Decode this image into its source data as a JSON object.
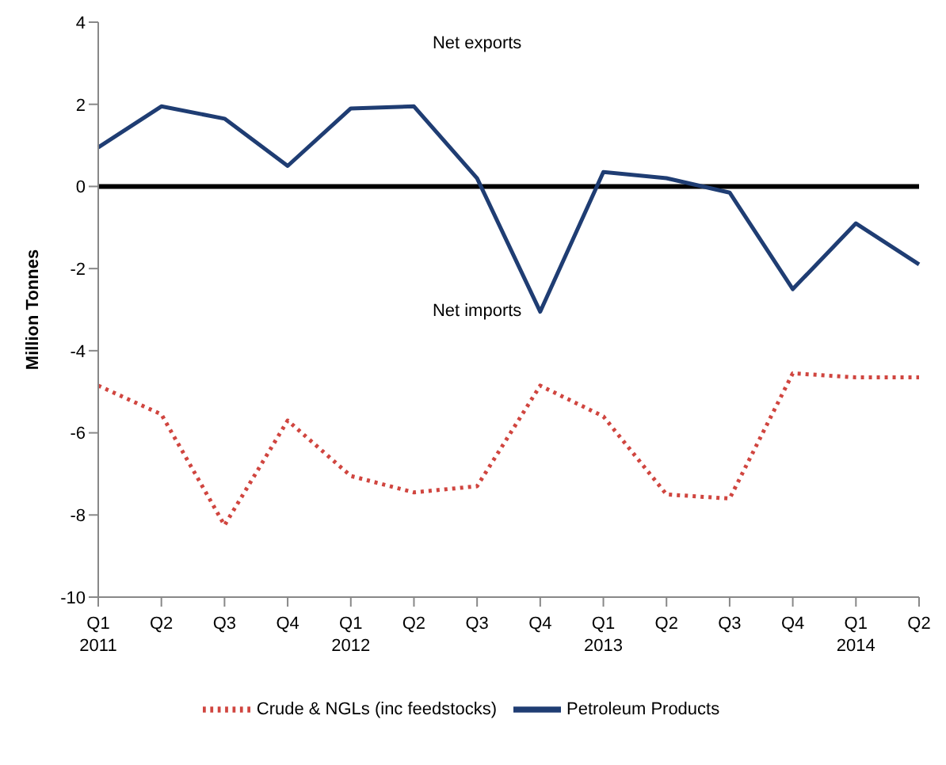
{
  "chart_data": {
    "type": "line",
    "ylabel": "Million Tonnes",
    "categories": [
      "Q1 2011",
      "Q2",
      "Q3",
      "Q4",
      "Q1 2012",
      "Q2",
      "Q3",
      "Q4",
      "Q1 2013",
      "Q2",
      "Q3",
      "Q4",
      "Q1 2014",
      "Q2"
    ],
    "series": [
      {
        "name": "Crude & NGLs (inc feedstocks)",
        "color": "#d0453f",
        "line_style": "dotted",
        "values": [
          -4.85,
          -5.55,
          -8.25,
          -5.7,
          -7.05,
          -7.45,
          -7.3,
          -4.85,
          -5.6,
          -7.5,
          -7.6,
          -4.55,
          -4.65,
          -4.65
        ]
      },
      {
        "name": "Petroleum Products",
        "color": "#1f3d73",
        "line_style": "solid",
        "values": [
          0.95,
          1.95,
          1.65,
          0.5,
          1.9,
          1.95,
          0.2,
          -3.05,
          0.35,
          0.2,
          -0.15,
          -2.5,
          -0.9,
          -1.9
        ]
      }
    ],
    "ylim": [
      -10,
      4
    ],
    "yticks": [
      -10,
      -8,
      -6,
      -4,
      -2,
      0,
      2,
      4
    ],
    "ref_lines": [
      {
        "axis": "y",
        "value": 0,
        "color": "#000000"
      }
    ],
    "annotations": [
      "Net exports",
      "Net imports"
    ],
    "grid": false,
    "legend": "bottom",
    "marker": "none"
  }
}
